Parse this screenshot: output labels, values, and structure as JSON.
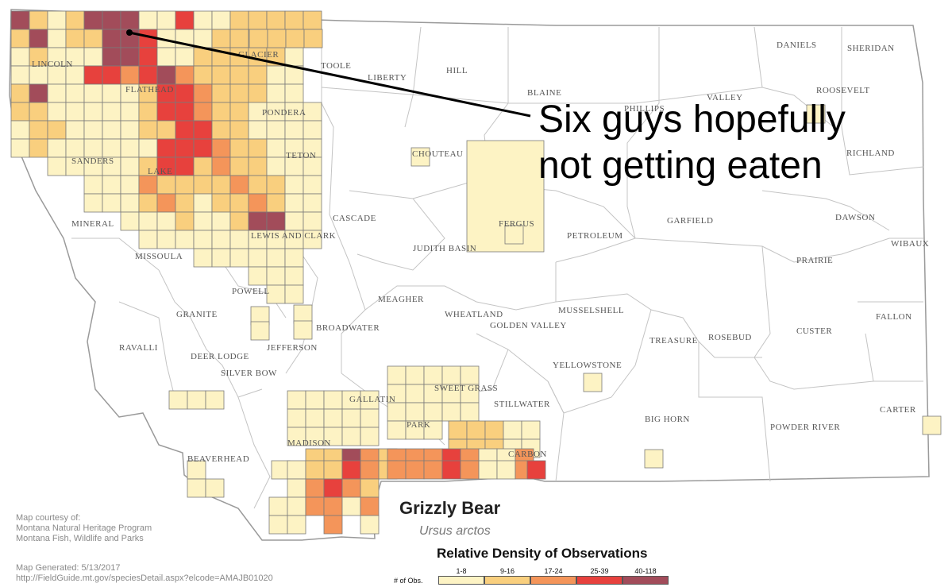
{
  "map": {
    "title": "Grizzly Bear",
    "subtitle": "Ursus arctos",
    "annotation": {
      "line1": "Six guys hopefully",
      "line2": "not getting eaten"
    }
  },
  "counties": [
    "TOOLE",
    "LIBERTY",
    "HILL",
    "BLAINE",
    "PHILLIPS",
    "VALLEY",
    "DANIELS",
    "SHERIDAN",
    "ROOSEVELT",
    "RICHLAND",
    "CHOUTEAU",
    "TETON",
    "CASCADE",
    "JUDITH BASIN",
    "PETROLEUM",
    "GARFIELD",
    "DAWSON",
    "WIBAUX",
    "PRAIRIE",
    "MINERAL",
    "MISSOULA",
    "POWELL",
    "GRANITE",
    "RAVALLI",
    "DEER LODGE",
    "JEFFERSON",
    "BROADWATER",
    "MEAGHER",
    "WHEATLAND",
    "GOLDEN VALLEY",
    "MUSSELSHELL",
    "TREASURE",
    "ROSEBUD",
    "CUSTER",
    "FALLON",
    "SILVER BOW",
    "YELLOWSTONE",
    "STILLWATER",
    "BIG HORN",
    "POWDER RIVER",
    "CARTER",
    "MADISON",
    "BEAVERHEAD",
    "CARBON",
    "SANDERS",
    "LINCOLN",
    "FLATHEAD",
    "LAKE",
    "PONDERA",
    "GLACIER",
    "LEWIS AND CLARK",
    "FERGUS",
    "SWEET GRASS",
    "PARK",
    "GALLATIN"
  ],
  "legend": {
    "title": "Relative Density of Observations",
    "lead": "# of Obs.",
    "bins": [
      {
        "label": "1-8",
        "color": "#fdf3c4"
      },
      {
        "label": "9-16",
        "color": "#f9cf7e"
      },
      {
        "label": "17-24",
        "color": "#f4955a"
      },
      {
        "label": "25-39",
        "color": "#e7413d"
      },
      {
        "label": "40-118",
        "color": "#a24c5a"
      }
    ]
  },
  "credits": {
    "line1": "Map courtesy of:",
    "line2": "Montana Natural Heritage Program",
    "line3": "Montana Fish, Wildlife and Parks",
    "generated": "Map Generated: 5/13/2017",
    "url": "http://FieldGuide.mt.gov/speciesDetail.aspx?elcode=AMAJB01020"
  },
  "colors": {
    "border": "#b9b9b9",
    "county_text": "#555555",
    "annotation_line": "#000000"
  }
}
